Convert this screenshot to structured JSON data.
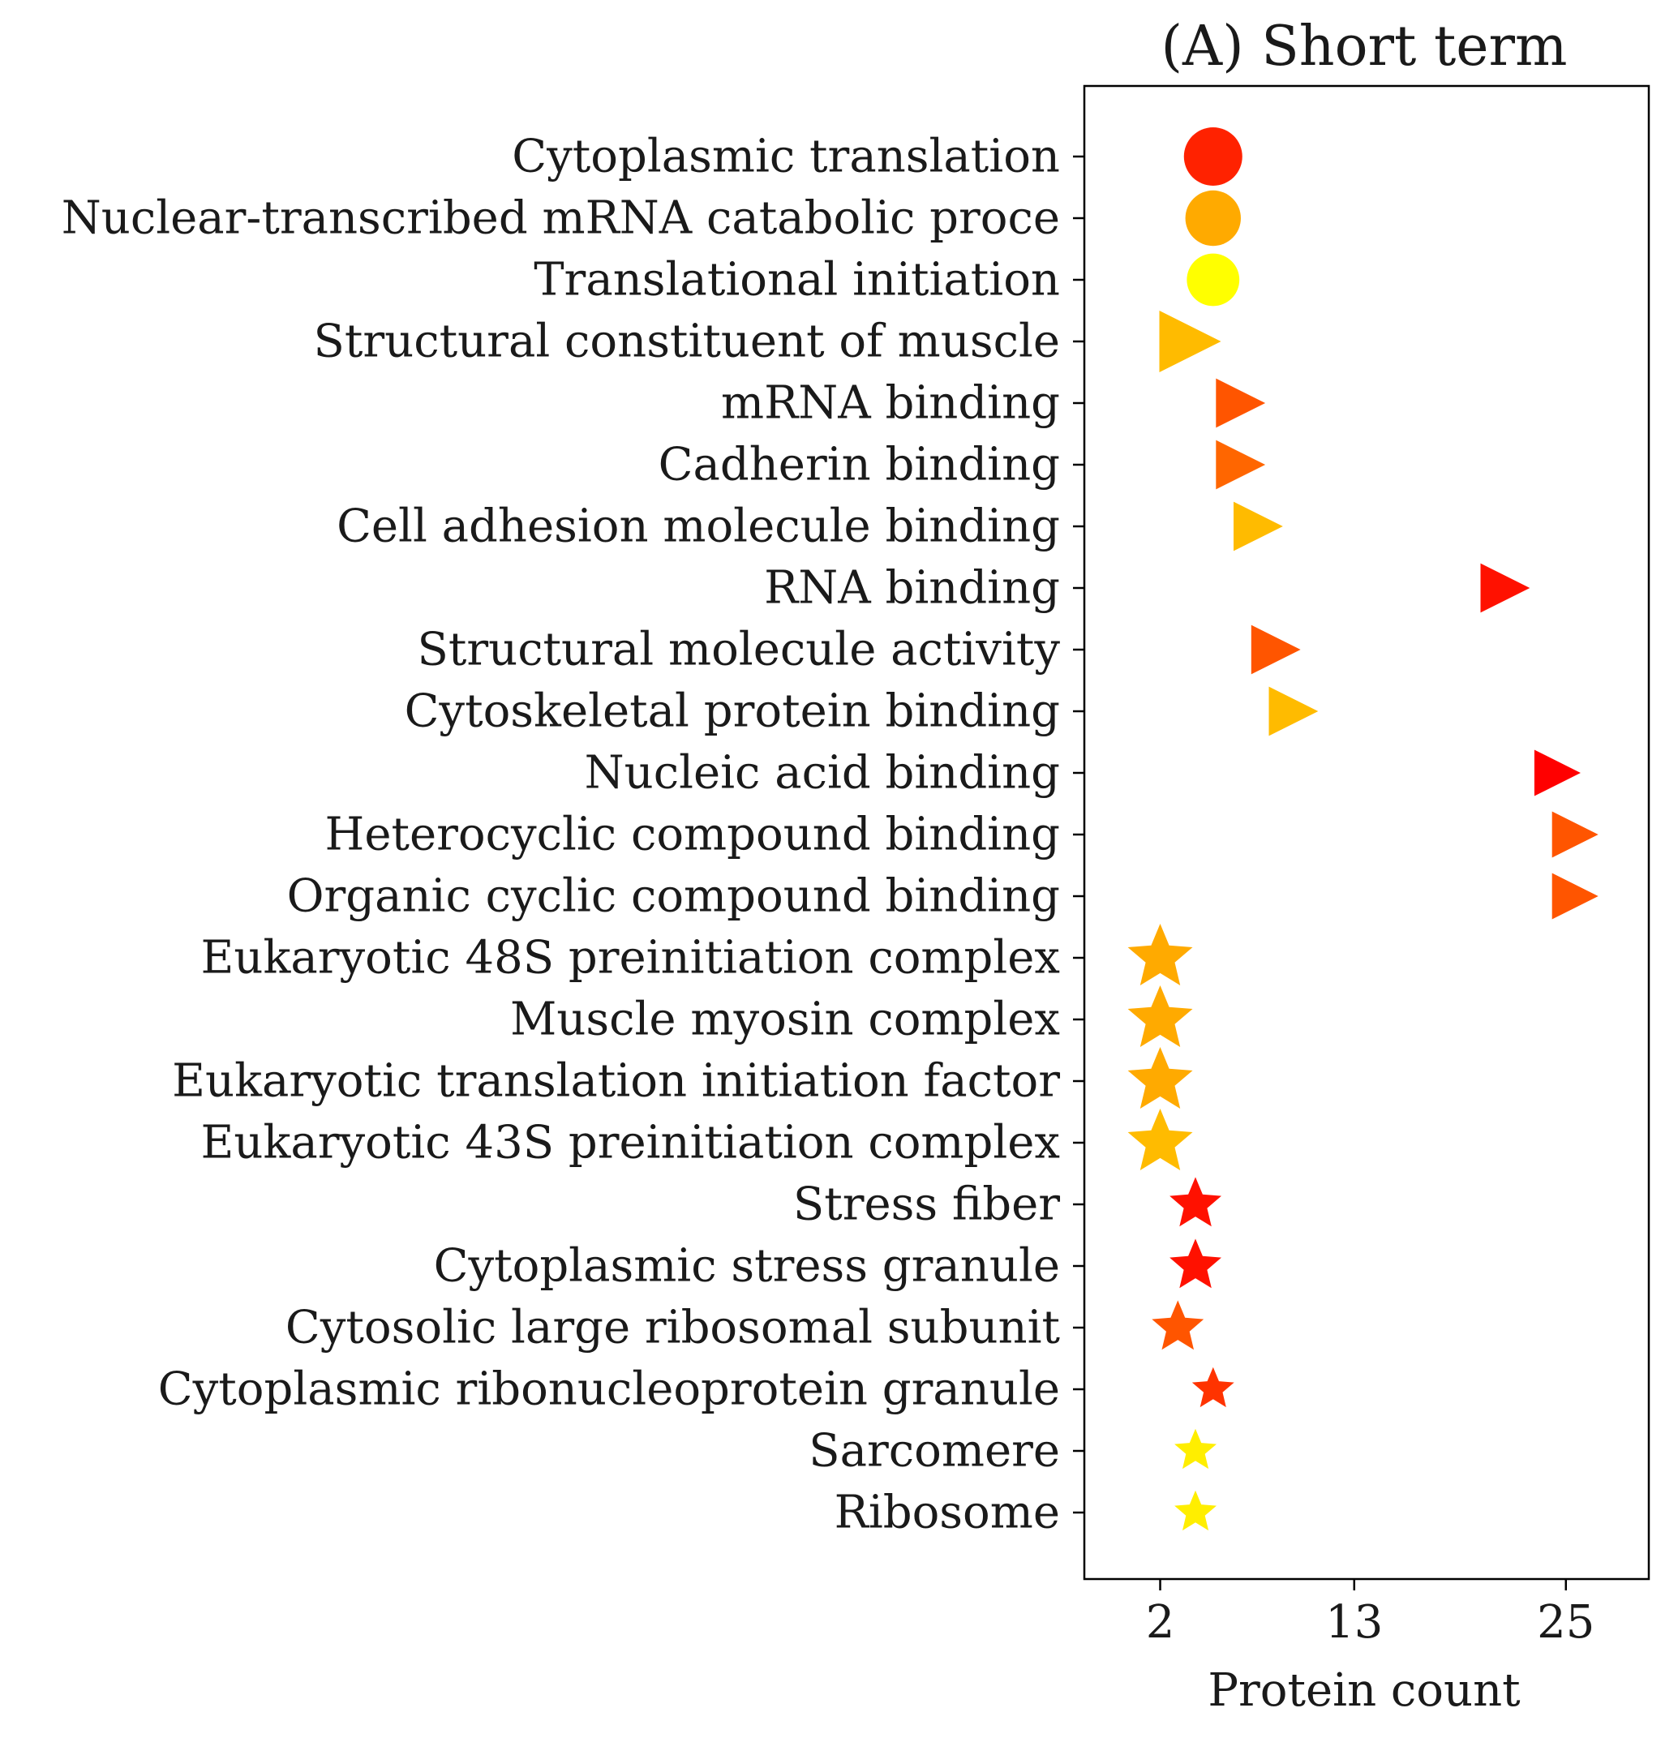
{
  "chart_data": {
    "type": "scatter",
    "title": "(A) Short term",
    "xlabel": "Protein count",
    "ylabel": "",
    "xlim": [
      -2.3,
      29.7
    ],
    "xticks": [
      2,
      13,
      25
    ],
    "xtick_labels": [
      "2",
      "13",
      "25"
    ],
    "grid": false,
    "categories": [
      "Cytoplasmic translation",
      "Nuclear-transcribed mRNA catabolic proce",
      "Translational initiation",
      "Structural constituent of muscle",
      "mRNA binding",
      "Cadherin binding",
      "Cell adhesion molecule binding",
      "RNA binding",
      "Structural molecule activity",
      "Cytoskeletal protein binding",
      "Nucleic acid binding",
      "Heterocyclic compound binding",
      "Organic cyclic compound binding",
      "Eukaryotic 48S preinitiation complex",
      "Muscle myosin complex",
      "Eukaryotic translation initiation factor",
      "Eukaryotic 43S preinitiation complex",
      "Stress fiber",
      "Cytoplasmic stress granule",
      "Cytosolic large ribosomal subunit",
      "Cytoplasmic ribonucleoprotein granule",
      "Sarcomere",
      "Ribosome"
    ],
    "points": [
      {
        "category": "Cytoplasmic translation",
        "x": 5,
        "marker": "circle",
        "size": 1.0,
        "color": "#ff2200"
      },
      {
        "category": "Nuclear-transcribed mRNA catabolic proce",
        "x": 5,
        "marker": "circle",
        "size": 0.95,
        "color": "#ffaa00"
      },
      {
        "category": "Translational initiation",
        "x": 5,
        "marker": "circle",
        "size": 0.9,
        "color": "#ffff00"
      },
      {
        "category": "Structural constituent of muscle",
        "x": 3,
        "marker": "triangle-right",
        "size": 1.0,
        "color": "#ffbb00"
      },
      {
        "category": "mRNA binding",
        "x": 6,
        "marker": "triangle-right",
        "size": 0.8,
        "color": "#ff5500"
      },
      {
        "category": "Cadherin binding",
        "x": 6,
        "marker": "triangle-right",
        "size": 0.8,
        "color": "#ff6600"
      },
      {
        "category": "Cell adhesion molecule binding",
        "x": 7,
        "marker": "triangle-right",
        "size": 0.8,
        "color": "#ffbb00"
      },
      {
        "category": "RNA binding",
        "x": 21,
        "marker": "triangle-right",
        "size": 0.8,
        "color": "#ff1100"
      },
      {
        "category": "Structural molecule activity",
        "x": 8,
        "marker": "triangle-right",
        "size": 0.8,
        "color": "#ff5500"
      },
      {
        "category": "Cytoskeletal protein binding",
        "x": 9,
        "marker": "triangle-right",
        "size": 0.8,
        "color": "#ffbb00"
      },
      {
        "category": "Nucleic acid binding",
        "x": 24,
        "marker": "triangle-right",
        "size": 0.75,
        "color": "#ff0000"
      },
      {
        "category": "Heterocyclic compound binding",
        "x": 25,
        "marker": "triangle-right",
        "size": 0.75,
        "color": "#ff5500"
      },
      {
        "category": "Organic cyclic compound binding",
        "x": 25,
        "marker": "triangle-right",
        "size": 0.75,
        "color": "#ff5500"
      },
      {
        "category": "Eukaryotic 48S preinitiation complex",
        "x": 2,
        "marker": "star",
        "size": 1.0,
        "color": "#ffaa00"
      },
      {
        "category": "Muscle myosin complex",
        "x": 2,
        "marker": "star",
        "size": 1.0,
        "color": "#ffaa00"
      },
      {
        "category": "Eukaryotic translation initiation factor",
        "x": 2,
        "marker": "star",
        "size": 1.0,
        "color": "#ffaa00"
      },
      {
        "category": "Eukaryotic 43S preinitiation complex",
        "x": 2,
        "marker": "star",
        "size": 1.0,
        "color": "#ffbb00"
      },
      {
        "category": "Stress fiber",
        "x": 4,
        "marker": "star",
        "size": 0.8,
        "color": "#ff1100"
      },
      {
        "category": "Cytoplasmic stress granule",
        "x": 4,
        "marker": "star",
        "size": 0.8,
        "color": "#ff1100"
      },
      {
        "category": "Cytosolic large ribosomal subunit",
        "x": 3,
        "marker": "star",
        "size": 0.8,
        "color": "#ff5500"
      },
      {
        "category": "Cytoplasmic ribonucleoprotein granule",
        "x": 5,
        "marker": "star",
        "size": 0.65,
        "color": "#ff3300"
      },
      {
        "category": "Sarcomere",
        "x": 4,
        "marker": "star",
        "size": 0.65,
        "color": "#ffee00"
      },
      {
        "category": "Ribosome",
        "x": 4,
        "marker": "star",
        "size": 0.65,
        "color": "#ffee00"
      }
    ]
  }
}
